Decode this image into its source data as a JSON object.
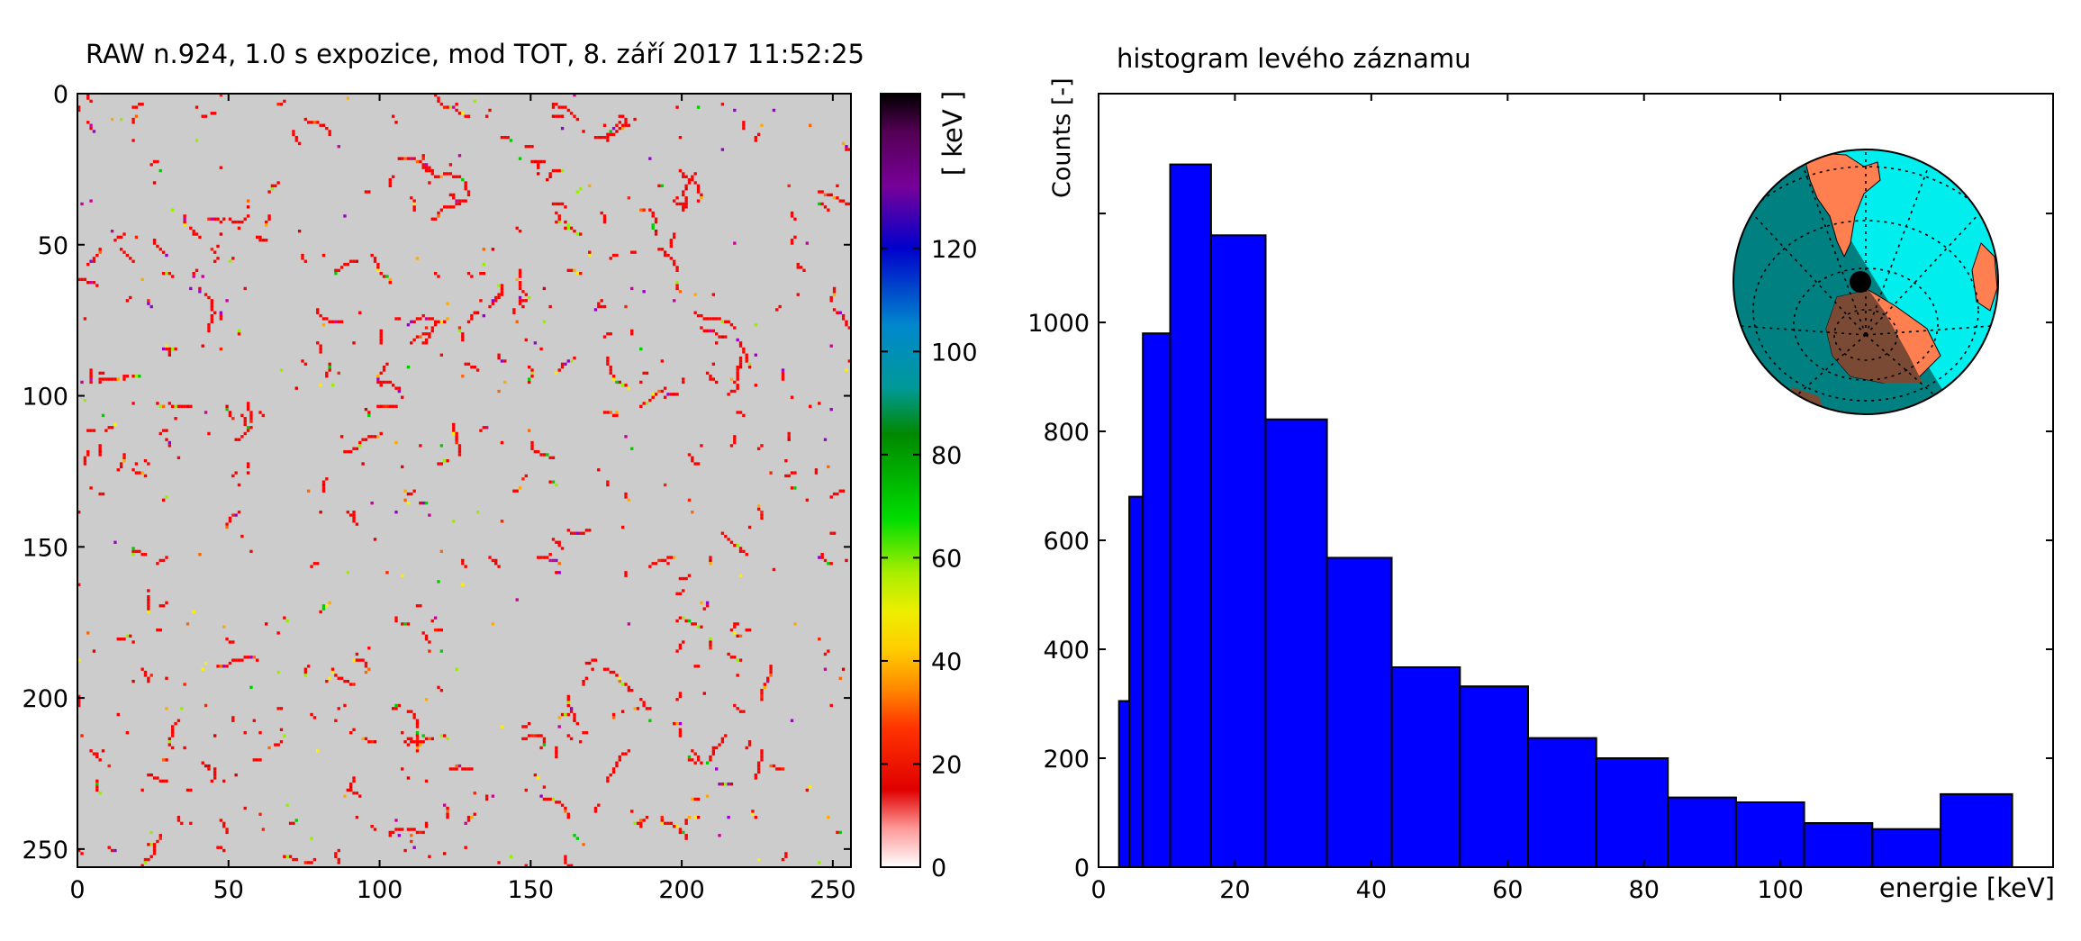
{
  "chart_data": [
    {
      "type": "heatmap",
      "title": "RAW n.924, 1.0 s expozice, mod TOT, 8. září 2017 11:52:25",
      "xlabel": "",
      "ylabel": "",
      "xlim": [
        0,
        256
      ],
      "ylim": [
        256,
        0
      ],
      "x_ticks": [
        "0",
        "50",
        "100",
        "150",
        "200",
        "250"
      ],
      "y_ticks": [
        "0",
        "50",
        "100",
        "150",
        "200",
        "250"
      ],
      "colorbar": {
        "label": "[ keV ]",
        "range": [
          0,
          150
        ],
        "ticks": [
          "0",
          "20",
          "40",
          "60",
          "80",
          "100",
          "120"
        ]
      },
      "background_color": "#cccccc"
    },
    {
      "type": "bar",
      "title": "histogram levého záznamu",
      "xlabel": "energie [keV]",
      "ylabel": "Counts [-]",
      "xlim": [
        0,
        140
      ],
      "ylim": [
        0,
        1420
      ],
      "x_ticks": [
        "0",
        "20",
        "40",
        "60",
        "80",
        "100"
      ],
      "y_ticks": [
        "0",
        "200",
        "400",
        "600",
        "800",
        "1000"
      ],
      "bar_color": "#0000ff",
      "bins": [
        {
          "x0": 3,
          "x1": 4.5,
          "value": 305
        },
        {
          "x0": 4.5,
          "x1": 6.5,
          "value": 680
        },
        {
          "x0": 6.5,
          "x1": 10.5,
          "value": 980
        },
        {
          "x0": 10.5,
          "x1": 16.5,
          "value": 1290
        },
        {
          "x0": 16.5,
          "x1": 24.5,
          "value": 1160
        },
        {
          "x0": 24.5,
          "x1": 33.5,
          "value": 822
        },
        {
          "x0": 33.5,
          "x1": 43,
          "value": 568
        },
        {
          "x0": 43,
          "x1": 53,
          "value": 367
        },
        {
          "x0": 53,
          "x1": 63,
          "value": 332
        },
        {
          "x0": 63,
          "x1": 73,
          "value": 237
        },
        {
          "x0": 73,
          "x1": 83.5,
          "value": 200
        },
        {
          "x0": 83.5,
          "x1": 93.5,
          "value": 128
        },
        {
          "x0": 93.5,
          "x1": 103.5,
          "value": 119
        },
        {
          "x0": 103.5,
          "x1": 113.5,
          "value": 81
        },
        {
          "x0": 113.5,
          "x1": 123.5,
          "value": 70
        },
        {
          "x0": 123.5,
          "x1": 134,
          "value": 134
        }
      ]
    }
  ]
}
